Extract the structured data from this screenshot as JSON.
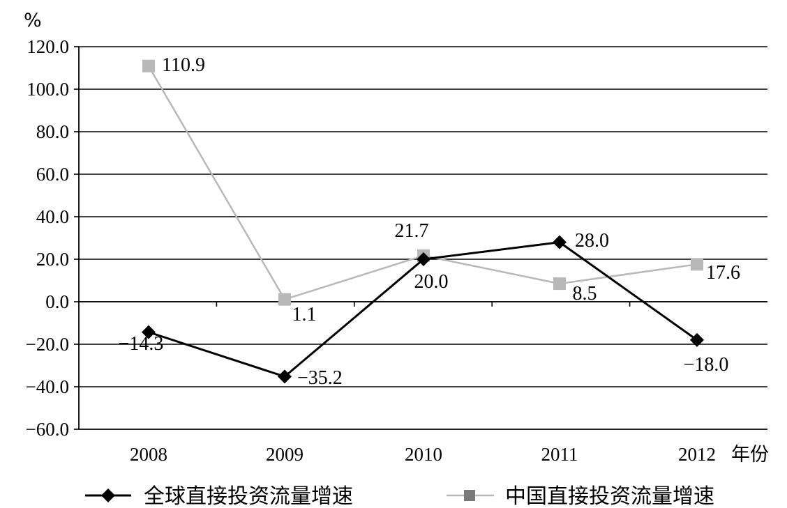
{
  "chart_data": {
    "type": "line",
    "ylabel": "%",
    "xlabel": "年份",
    "ylim": [
      -60,
      120
    ],
    "y_ticks": [
      "120.0",
      "100.0",
      "80.0",
      "60.0",
      "40.0",
      "20.0",
      "0.0",
      "−20.0",
      "−40.0",
      "−60.0"
    ],
    "categories": [
      "2008",
      "2009",
      "2010",
      "2011",
      "2012"
    ],
    "grid": true,
    "legend_position": "bottom",
    "series": [
      {
        "name": "全球直接投资流量增速",
        "values": [
          -14.3,
          -35.2,
          20.0,
          28.0,
          -18.0
        ],
        "labels": [
          "−14.3",
          "−35.2",
          "20.0",
          "28.0",
          "−18.0"
        ],
        "color": "#000000",
        "marker": "diamond"
      },
      {
        "name": "中国直接投资流量增速",
        "values": [
          110.9,
          1.1,
          21.7,
          8.5,
          17.6
        ],
        "labels": [
          "110.9",
          "1.1",
          "21.7",
          "8.5",
          "17.6"
        ],
        "color": "#b8b8b8",
        "marker": "square"
      }
    ]
  }
}
